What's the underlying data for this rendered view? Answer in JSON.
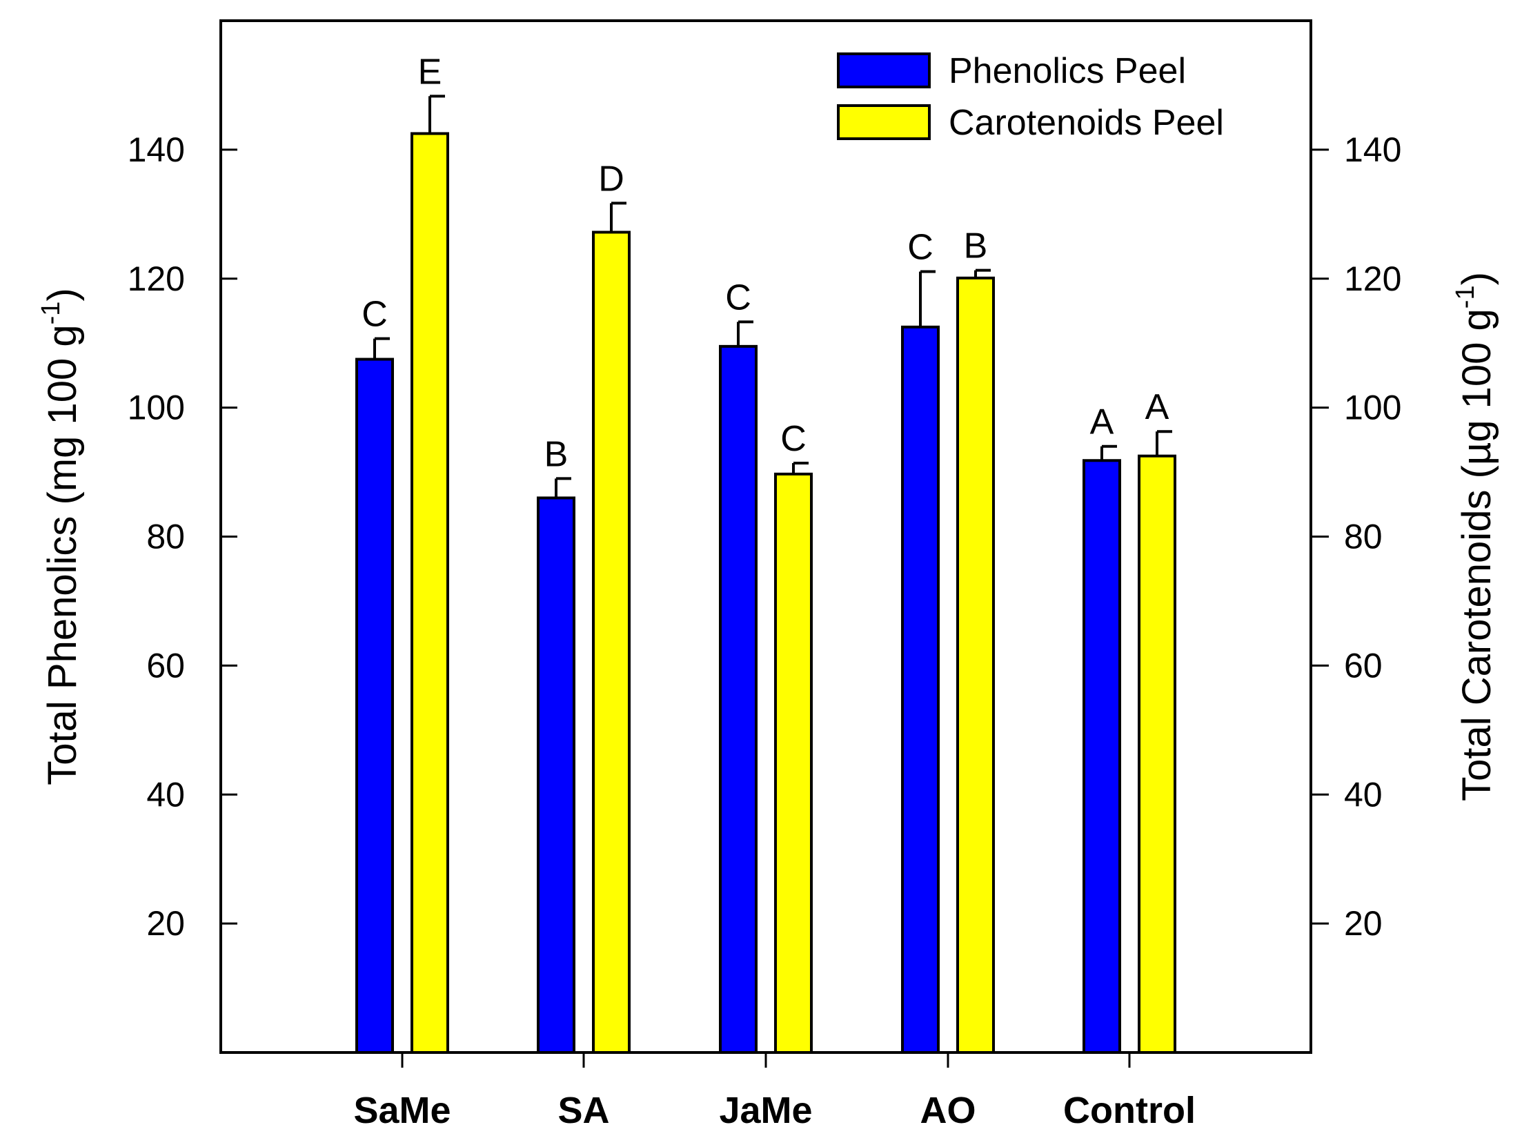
{
  "chart_data": {
    "type": "bar",
    "categories": [
      "SaMe",
      "SA",
      "JaMe",
      "AO",
      "Control"
    ],
    "series": [
      {
        "name": "Phenolics Peel",
        "axis": "left",
        "color": "#0000ff",
        "values": [
          107.5,
          86,
          109.5,
          112.5,
          91.8
        ],
        "errors": [
          3.2,
          3.0,
          3.8,
          8.6,
          2.2
        ],
        "significance": [
          "C",
          "B",
          "C",
          "C",
          "A"
        ]
      },
      {
        "name": "Carotenoids Peel",
        "axis": "right",
        "color": "#ffff00",
        "values": [
          142.5,
          127.2,
          89.7,
          120.1,
          92.5
        ],
        "errors": [
          5.8,
          4.5,
          1.7,
          1.2,
          3.8
        ],
        "significance": [
          "E",
          "D",
          "C",
          "B",
          "A"
        ]
      }
    ],
    "ylabel_left": {
      "main": "Total Phenolics (mg 100 g",
      "sup": "-1",
      "close": ")"
    },
    "ylabel_right": {
      "main": "Total Carotenoids (µg 100 g",
      "sup": "-1",
      "close": ")"
    },
    "ylim_left": [
      0,
      160
    ],
    "ylim_right": [
      0,
      160
    ],
    "yticks": [
      20,
      40,
      60,
      80,
      100,
      120,
      140
    ],
    "grid": false,
    "legend_position": "top-right"
  }
}
